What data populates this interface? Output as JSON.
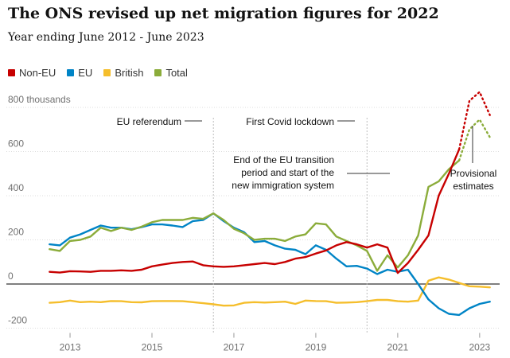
{
  "chart_data": {
    "type": "line",
    "title": "The ONS revised up net migration figures for 2022",
    "subtitle": "Year ending June 2012 - June 2023",
    "y_unit_label": "800 thousands",
    "ylim": [
      -200,
      850
    ],
    "xlim": [
      2012.3,
      2023.45
    ],
    "y_ticks": [
      {
        "value": 800,
        "label": "800 thousands"
      },
      {
        "value": 600,
        "label": "600"
      },
      {
        "value": 400,
        "label": "400"
      },
      {
        "value": 200,
        "label": "200"
      },
      {
        "value": 0,
        "label": "0"
      },
      {
        "value": -200,
        "label": "-200"
      }
    ],
    "x_ticks": [
      {
        "value": 2013,
        "label": "2013"
      },
      {
        "value": 2015,
        "label": "2015"
      },
      {
        "value": 2017,
        "label": "2017"
      },
      {
        "value": 2019,
        "label": "2019"
      },
      {
        "value": 2021,
        "label": "2021"
      },
      {
        "value": 2023,
        "label": "2023"
      }
    ],
    "grid": true,
    "legend_position": "top-left",
    "colors": {
      "Non-EU": "#c70000",
      "EU": "#0084c6",
      "British": "#f5be2c",
      "Total": "#8bac3a"
    },
    "series": [
      {
        "name": "Non-EU",
        "x": [
          2012.5,
          2012.75,
          2013.0,
          2013.25,
          2013.5,
          2013.75,
          2014.0,
          2014.25,
          2014.5,
          2014.75,
          2015.0,
          2015.25,
          2015.5,
          2015.75,
          2016.0,
          2016.25,
          2016.5,
          2016.75,
          2017.0,
          2017.25,
          2017.5,
          2017.75,
          2018.0,
          2018.25,
          2018.5,
          2018.75,
          2019.0,
          2019.25,
          2019.5,
          2019.75,
          2020.0,
          2020.25,
          2020.5,
          2020.75,
          2021.0,
          2021.25,
          2021.5,
          2021.75,
          2022.0
        ],
        "values": [
          55,
          52,
          58,
          57,
          55,
          60,
          60,
          62,
          60,
          65,
          80,
          88,
          95,
          100,
          102,
          85,
          80,
          78,
          80,
          85,
          90,
          95,
          90,
          100,
          115,
          122,
          138,
          152,
          175,
          190,
          180,
          165,
          180,
          165,
          50,
          95,
          155,
          220,
          400
        ],
        "segments_extended": {
          "solid_x": [
            2022.0,
            2022.25,
            2022.5
          ],
          "solid_values": [
            400,
            500,
            610
          ],
          "dotted_x": [
            2022.5,
            2022.75,
            2023.0,
            2023.25
          ],
          "dotted_values": [
            610,
            830,
            870,
            765
          ]
        }
      },
      {
        "name": "EU",
        "x": [
          2012.5,
          2012.75,
          2013.0,
          2013.25,
          2013.5,
          2013.75,
          2014.0,
          2014.25,
          2014.5,
          2014.75,
          2015.0,
          2015.25,
          2015.5,
          2015.75,
          2016.0,
          2016.25,
          2016.5,
          2016.75,
          2017.0,
          2017.25,
          2017.5,
          2017.75,
          2018.0,
          2018.25,
          2018.5,
          2018.75,
          2019.0,
          2019.25,
          2019.5,
          2019.75,
          2020.0,
          2020.25,
          2020.5,
          2020.75,
          2021.0,
          2021.25,
          2021.5,
          2021.75,
          2022.0,
          2022.25,
          2022.5,
          2022.75,
          2023.0,
          2023.25
        ],
        "values": [
          180,
          175,
          210,
          225,
          245,
          265,
          255,
          255,
          248,
          258,
          270,
          270,
          265,
          258,
          285,
          290,
          320,
          285,
          255,
          235,
          190,
          195,
          175,
          160,
          155,
          135,
          175,
          155,
          115,
          80,
          82,
          70,
          45,
          65,
          55,
          65,
          0,
          -70,
          -110,
          -135,
          -140,
          -110,
          -90,
          -80
        ],
        "dotted_from_index": null
      },
      {
        "name": "British",
        "x": [
          2012.5,
          2012.75,
          2013.0,
          2013.25,
          2013.5,
          2013.75,
          2014.0,
          2014.25,
          2014.5,
          2014.75,
          2015.0,
          2015.25,
          2015.5,
          2015.75,
          2016.0,
          2016.25,
          2016.5,
          2016.75,
          2017.0,
          2017.25,
          2017.5,
          2017.75,
          2018.0,
          2018.25,
          2018.5,
          2018.75,
          2019.0,
          2019.25,
          2019.5,
          2019.75,
          2020.0,
          2020.25,
          2020.5,
          2020.75,
          2021.0,
          2021.25,
          2021.5,
          2021.75,
          2022.0,
          2022.25,
          2022.5,
          2022.75,
          2023.0,
          2023.25
        ],
        "values": [
          -85,
          -82,
          -75,
          -82,
          -80,
          -82,
          -77,
          -78,
          -82,
          -83,
          -78,
          -77,
          -77,
          -78,
          -82,
          -87,
          -92,
          -98,
          -97,
          -85,
          -82,
          -84,
          -82,
          -80,
          -90,
          -75,
          -77,
          -78,
          -85,
          -84,
          -82,
          -78,
          -72,
          -72,
          -78,
          -80,
          -75,
          15,
          30,
          20,
          5,
          -10,
          -12,
          -15
        ],
        "dotted_from_index": null
      },
      {
        "name": "Total",
        "x": [
          2012.5,
          2012.75,
          2013.0,
          2013.25,
          2013.5,
          2013.75,
          2014.0,
          2014.25,
          2014.5,
          2014.75,
          2015.0,
          2015.25,
          2015.5,
          2015.75,
          2016.0,
          2016.25,
          2016.5,
          2016.75,
          2017.0,
          2017.25,
          2017.5,
          2017.75,
          2018.0,
          2018.25,
          2018.5,
          2018.75,
          2019.0,
          2019.25,
          2019.5,
          2019.75,
          2020.0,
          2020.25,
          2020.5,
          2020.75,
          2021.0,
          2021.25,
          2021.5,
          2021.75,
          2022.0,
          2022.25,
          2022.5
        ],
        "values": [
          158,
          150,
          195,
          200,
          215,
          255,
          240,
          255,
          245,
          260,
          280,
          290,
          290,
          290,
          300,
          295,
          320,
          290,
          250,
          230,
          200,
          205,
          205,
          195,
          215,
          225,
          275,
          270,
          215,
          195,
          175,
          150,
          60,
          130,
          75,
          130,
          220,
          440,
          465,
          520,
          560
        ],
        "segments_extended": {
          "dotted_x": [
            2022.5,
            2022.75,
            2023.0,
            2023.25
          ],
          "dotted_values": [
            560,
            700,
            745,
            665
          ]
        }
      }
    ],
    "annotations": [
      {
        "id": "eu-referendum",
        "lines": [
          "EU referendum"
        ],
        "x": 2016.5
      },
      {
        "id": "first-covid-lockdown",
        "lines": [
          "First Covid lockdown"
        ],
        "x": 2020.25
      },
      {
        "id": "eu-transition",
        "lines": [
          "End of the EU transition",
          "period and start of the",
          "new immigration system"
        ],
        "x": 2021.0
      },
      {
        "id": "provisional",
        "lines": [
          "Provisional",
          "estimates"
        ],
        "x": 2022.75
      }
    ]
  }
}
